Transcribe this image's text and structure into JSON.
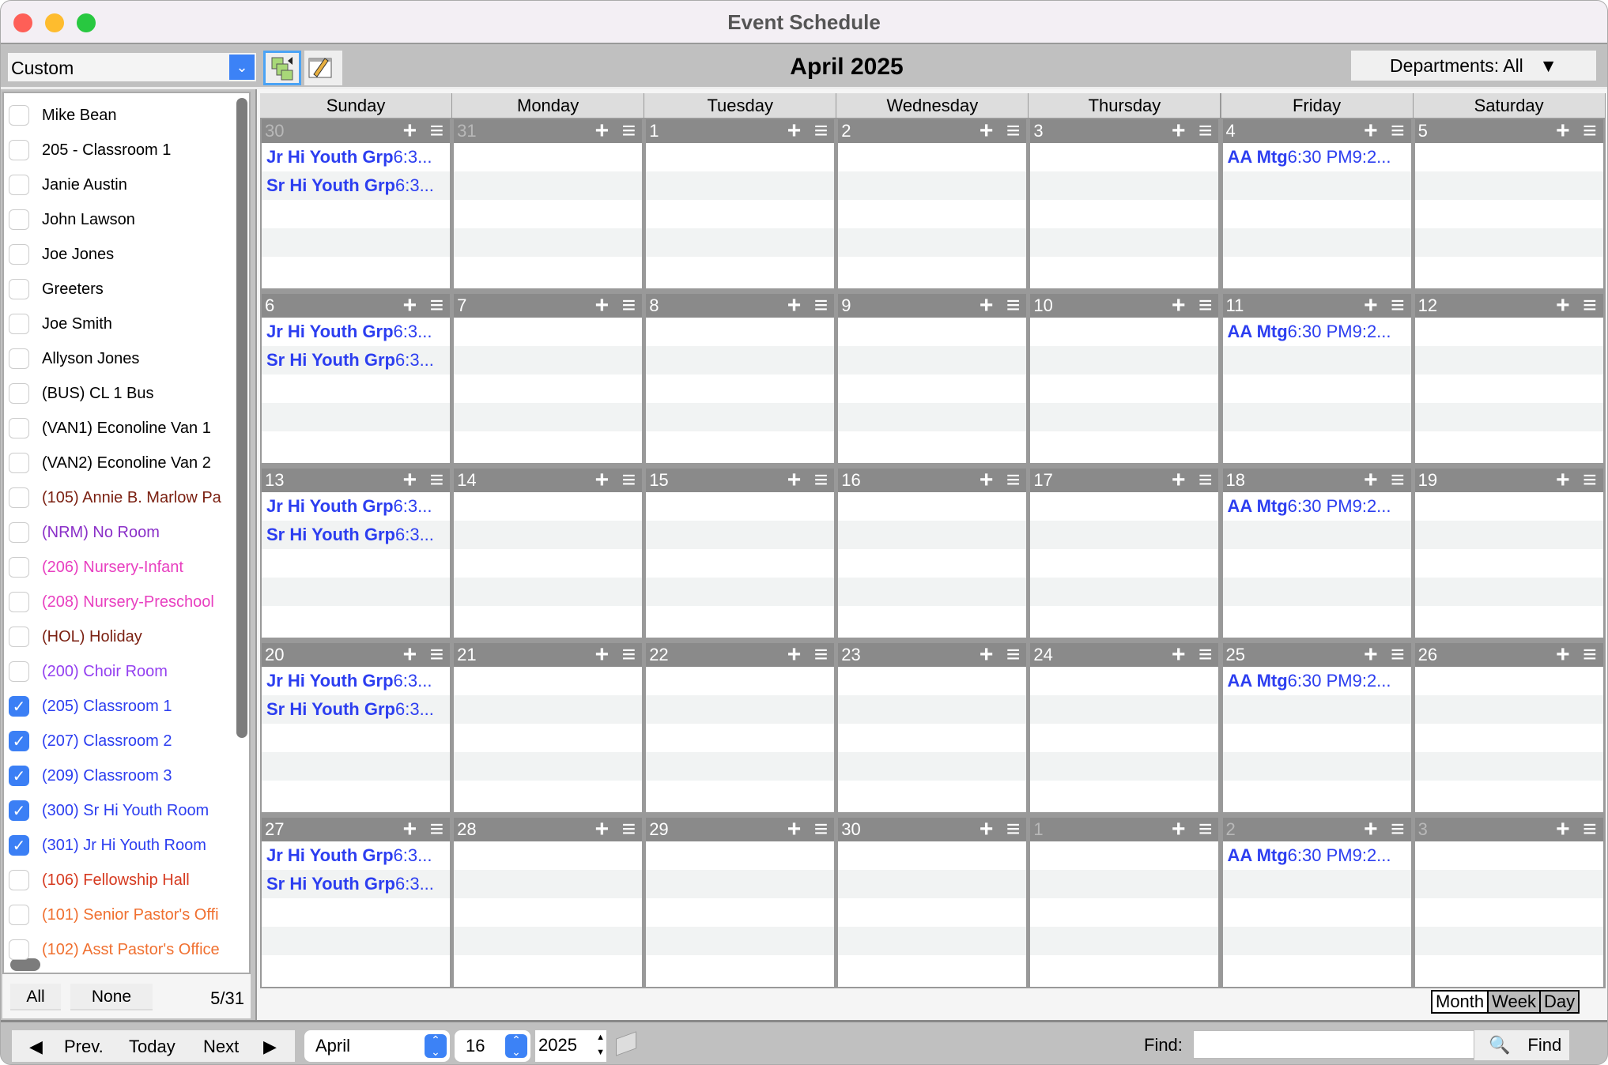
{
  "window": {
    "title": "Event Schedule"
  },
  "toolbar": {
    "view_select": "Custom",
    "month_title": "April 2025",
    "departments": "Departments: All"
  },
  "sidebar": {
    "items": [
      {
        "label": "Mike Bean",
        "checked": false,
        "color": "#000000"
      },
      {
        "label": "205 - Classroom 1",
        "checked": false,
        "color": "#000000"
      },
      {
        "label": "Janie Austin",
        "checked": false,
        "color": "#000000"
      },
      {
        "label": "John Lawson",
        "checked": false,
        "color": "#000000"
      },
      {
        "label": "Joe Jones",
        "checked": false,
        "color": "#000000"
      },
      {
        "label": "Greeters",
        "checked": false,
        "color": "#000000"
      },
      {
        "label": "Joe Smith",
        "checked": false,
        "color": "#000000"
      },
      {
        "label": "Allyson Jones",
        "checked": false,
        "color": "#000000"
      },
      {
        "label": "(BUS) CL 1 Bus",
        "checked": false,
        "color": "#000000"
      },
      {
        "label": "(VAN1) Econoline Van 1",
        "checked": false,
        "color": "#000000"
      },
      {
        "label": "(VAN2) Econoline Van 2",
        "checked": false,
        "color": "#000000"
      },
      {
        "label": "(105) Annie B. Marlow Pa",
        "checked": false,
        "color": "#7a1f10"
      },
      {
        "label": "(NRM) No Room",
        "checked": false,
        "color": "#8a2fc8"
      },
      {
        "label": "(206) Nursery-Infant",
        "checked": false,
        "color": "#e83fc0"
      },
      {
        "label": "(208) Nursery-Preschool",
        "checked": false,
        "color": "#e83fc0"
      },
      {
        "label": "(HOL) Holiday",
        "checked": false,
        "color": "#7a1f10"
      },
      {
        "label": "(200) Choir Room",
        "checked": false,
        "color": "#9440f0"
      },
      {
        "label": "(205) Classroom 1",
        "checked": true,
        "color": "#2c3ef0"
      },
      {
        "label": "(207) Classroom 2",
        "checked": true,
        "color": "#2c3ef0"
      },
      {
        "label": "(209) Classroom 3",
        "checked": true,
        "color": "#2c3ef0"
      },
      {
        "label": "(300) Sr Hi Youth Room",
        "checked": true,
        "color": "#2c3ef0"
      },
      {
        "label": "(301) Jr Hi Youth Room",
        "checked": true,
        "color": "#2c3ef0"
      },
      {
        "label": "(106) Fellowship Hall",
        "checked": false,
        "color": "#d63a20"
      },
      {
        "label": "(101) Senior Pastor's Offi",
        "checked": false,
        "color": "#f07030"
      },
      {
        "label": "(102) Asst Pastor's Office",
        "checked": false,
        "color": "#f07030"
      }
    ],
    "all_label": "All",
    "none_label": "None",
    "count": "5/31"
  },
  "calendar": {
    "weekdays": [
      "Sunday",
      "Monday",
      "Tuesday",
      "Wednesday",
      "Thursday",
      "Friday",
      "Saturday"
    ],
    "weeks": [
      {
        "days": [
          {
            "n": "30",
            "muted": true
          },
          {
            "n": "31",
            "muted": true
          },
          {
            "n": "1"
          },
          {
            "n": "2"
          },
          {
            "n": "3"
          },
          {
            "n": "4"
          },
          {
            "n": "5"
          }
        ]
      },
      {
        "days": [
          {
            "n": "6"
          },
          {
            "n": "7"
          },
          {
            "n": "8"
          },
          {
            "n": "9"
          },
          {
            "n": "10"
          },
          {
            "n": "11"
          },
          {
            "n": "12"
          }
        ]
      },
      {
        "days": [
          {
            "n": "13"
          },
          {
            "n": "14"
          },
          {
            "n": "15"
          },
          {
            "n": "16"
          },
          {
            "n": "17"
          },
          {
            "n": "18"
          },
          {
            "n": "19"
          }
        ]
      },
      {
        "days": [
          {
            "n": "20"
          },
          {
            "n": "21"
          },
          {
            "n": "22"
          },
          {
            "n": "23"
          },
          {
            "n": "24"
          },
          {
            "n": "25"
          },
          {
            "n": "26"
          }
        ]
      },
      {
        "days": [
          {
            "n": "27"
          },
          {
            "n": "28"
          },
          {
            "n": "29"
          },
          {
            "n": "30"
          },
          {
            "n": "1",
            "muted": true
          },
          {
            "n": "2",
            "muted": true
          },
          {
            "n": "3",
            "muted": true
          }
        ]
      }
    ],
    "sunday_events": [
      {
        "title": "Jr Hi Youth Grp",
        "time": "6:3..."
      },
      {
        "title": "Sr Hi Youth Grp",
        "time": "6:3..."
      }
    ],
    "friday_events": [
      {
        "title": "AA Mtg",
        "time": "6:30 PM9:2..."
      }
    ],
    "add_icon": "plus-icon",
    "menu_icon": "hamburger-icon",
    "event_color": "#2c3ef0"
  },
  "views": {
    "month": "Month",
    "week": "Week",
    "day": "Day",
    "selected": "Month"
  },
  "bottom": {
    "prev": "Prev.",
    "today": "Today",
    "next": "Next",
    "month": "April",
    "day": "16",
    "year": "2025",
    "find_label": "Find:",
    "find_value": "",
    "find_button": "Find"
  }
}
